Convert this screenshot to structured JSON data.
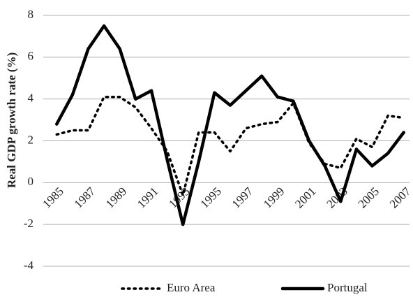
{
  "chart_data": {
    "type": "line",
    "y_label": "Real GDP growth rate (%)",
    "categories": [
      "1985",
      null,
      "1987",
      null,
      "1989",
      null,
      "1991",
      null,
      "1993",
      null,
      "1995",
      null,
      "1997",
      null,
      "1999",
      null,
      "2001",
      null,
      "2003",
      null,
      "2005",
      null,
      "2007"
    ],
    "series": [
      {
        "name": "Euro Area",
        "color": "#000000",
        "line_style": "dotted",
        "values": [
          2.3,
          2.5,
          2.5,
          4.1,
          4.1,
          3.6,
          2.6,
          1.5,
          -0.6,
          2.4,
          2.4,
          1.5,
          2.6,
          2.8,
          2.9,
          3.8,
          1.9,
          0.9,
          0.7,
          2.1,
          1.7,
          3.2,
          3.1
        ]
      },
      {
        "name": "Portugal",
        "color": "#000000",
        "line_style": "solid",
        "values": [
          2.8,
          4.2,
          6.4,
          7.5,
          6.4,
          4.0,
          4.4,
          1.1,
          -2.0,
          1.0,
          4.3,
          3.7,
          4.4,
          5.1,
          4.1,
          3.9,
          2.0,
          0.8,
          -0.9,
          1.6,
          0.8,
          1.4,
          2.4
        ]
      }
    ],
    "ylim": [
      -4,
      8
    ],
    "yticks": [
      -4,
      -2,
      0,
      2,
      4,
      6,
      8
    ],
    "grid": true,
    "legend": "bottom"
  }
}
